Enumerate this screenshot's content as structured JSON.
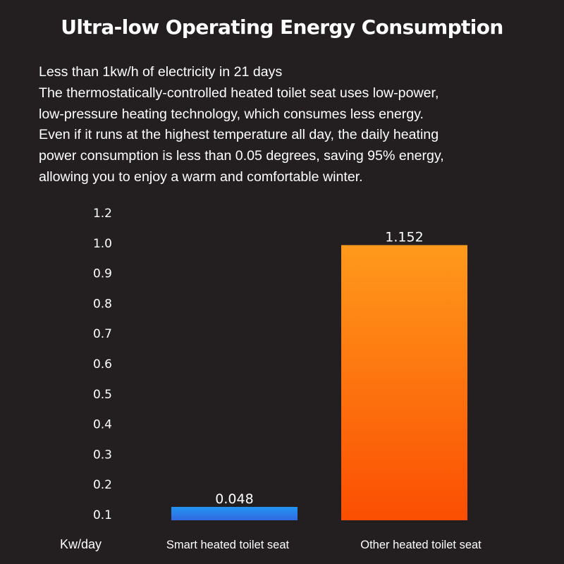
{
  "header": {
    "title": "Ultra-low Operating Energy Consumption"
  },
  "description": {
    "lines": [
      "Less than 1kw/h of electricity in 21 days",
      "The thermostatically-controlled heated toilet seat uses low-power,",
      "low-pressure heating technology, which consumes less energy.",
      "Even if it runs at the highest temperature all day, the daily heating",
      "power consumption is less than 0.05 degrees, saving 95% energy,",
      "allowing you to enjoy a warm and comfortable winter."
    ]
  },
  "chart_data": {
    "type": "bar",
    "title": "",
    "xlabel": "",
    "ylabel": "Kw/day",
    "categories": [
      "Smart heated toilet seat",
      "Other heated toilet seat"
    ],
    "values": [
      0.048,
      1.152
    ],
    "value_labels": [
      "0.048",
      "1.152"
    ],
    "y_ticks": [
      "0.1",
      "0.2",
      "0.3",
      "0.4",
      "0.5",
      "0.6",
      "0.7",
      "0.8",
      "0.9",
      "1.0",
      "1.2"
    ],
    "grid": true,
    "colors": {
      "smart_top": "#2196f3",
      "smart_bottom": "#3168e0",
      "other_top": "#ff9a1c",
      "other_bottom": "#fb4e02",
      "background": "#231f20",
      "grid": "#e0e0e0"
    }
  }
}
